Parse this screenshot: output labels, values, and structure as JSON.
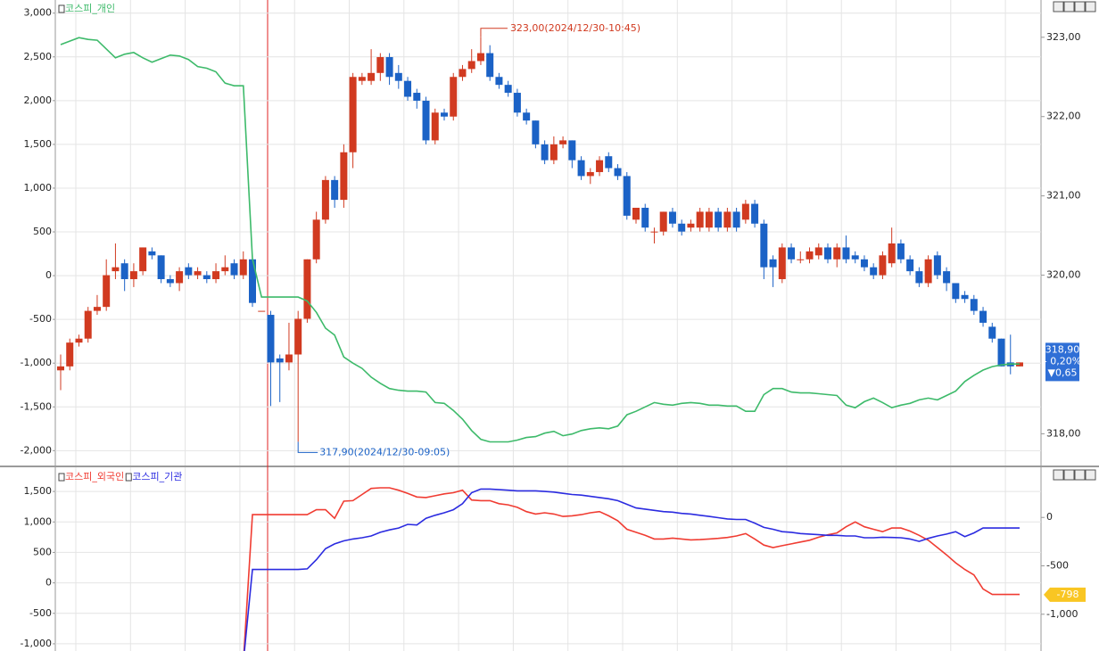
{
  "chart_data": [
    {
      "type": "candlestick",
      "candles": {
        "axis": "y2",
        "up_color": "#d13a20",
        "down_color": "#1b62c6",
        "open": [
          318.8,
          318.85,
          319.15,
          319.2,
          319.55,
          319.6,
          320.05,
          320.15,
          319.95,
          320.05,
          320.3,
          320.25,
          319.95,
          319.9,
          320.1,
          320.0,
          320.0,
          319.95,
          320.05,
          320.15,
          320.0,
          320.2,
          319.55,
          319.5,
          318.95,
          318.9,
          319.0,
          319.45,
          320.2,
          320.7,
          321.2,
          320.95,
          321.55,
          322.45,
          322.45,
          322.55,
          322.75,
          322.55,
          322.45,
          322.3,
          322.2,
          321.7,
          322.05,
          322.0,
          322.5,
          322.6,
          322.7,
          322.8,
          322.5,
          322.4,
          322.3,
          322.05,
          321.95,
          321.65,
          321.45,
          321.65,
          321.7,
          321.45,
          321.25,
          321.3,
          321.5,
          321.35,
          321.25,
          320.7,
          320.85,
          320.55,
          320.55,
          320.8,
          320.65,
          320.6,
          320.6,
          320.6,
          320.8,
          320.6,
          320.8,
          320.7,
          320.9,
          320.65,
          320.2,
          319.95,
          320.35,
          320.2,
          320.2,
          320.25,
          320.35,
          320.2,
          320.35,
          320.25,
          320.2,
          320.1,
          320.0,
          320.15,
          320.4,
          320.2,
          320.05,
          319.9,
          320.25,
          320.05,
          319.9,
          319.75,
          319.7,
          319.55,
          319.35,
          319.2,
          318.9,
          318.85
        ],
        "high": [
          319.0,
          319.2,
          319.25,
          319.6,
          319.75,
          320.2,
          320.4,
          320.2,
          320.15,
          320.35,
          320.35,
          320.25,
          320.0,
          320.1,
          320.15,
          320.1,
          320.05,
          320.15,
          320.25,
          320.2,
          320.3,
          320.2,
          319.55,
          319.55,
          319.0,
          319.4,
          319.55,
          320.2,
          320.8,
          321.25,
          321.25,
          321.65,
          322.55,
          322.55,
          322.85,
          322.8,
          322.8,
          322.65,
          322.5,
          322.35,
          322.25,
          322.1,
          322.1,
          322.55,
          322.65,
          322.85,
          323.0,
          322.9,
          322.55,
          322.45,
          322.35,
          322.1,
          321.95,
          321.7,
          321.75,
          321.75,
          321.7,
          321.5,
          321.35,
          321.5,
          321.55,
          321.4,
          321.3,
          320.85,
          320.9,
          320.6,
          320.8,
          320.85,
          320.7,
          320.7,
          320.85,
          320.85,
          320.85,
          320.85,
          320.85,
          320.95,
          320.95,
          320.7,
          320.25,
          320.4,
          320.4,
          320.3,
          320.35,
          320.4,
          320.4,
          320.4,
          320.5,
          320.3,
          320.25,
          320.15,
          320.3,
          320.6,
          320.45,
          320.25,
          320.1,
          320.25,
          320.3,
          320.1,
          319.9,
          319.8,
          319.75,
          319.6,
          319.4,
          319.2,
          319.25,
          318.9
        ],
        "low": [
          318.55,
          318.8,
          319.1,
          319.15,
          319.5,
          319.55,
          319.95,
          319.8,
          319.85,
          320.0,
          320.2,
          319.9,
          319.85,
          319.8,
          319.95,
          319.95,
          319.9,
          319.9,
          320.0,
          319.95,
          319.95,
          319.6,
          319.55,
          318.35,
          318.4,
          318.8,
          317.9,
          319.4,
          320.15,
          320.65,
          320.85,
          320.85,
          321.35,
          322.4,
          322.4,
          322.45,
          322.4,
          322.35,
          322.2,
          322.1,
          321.65,
          321.65,
          321.95,
          321.95,
          322.45,
          322.55,
          322.65,
          322.45,
          322.35,
          322.25,
          322.0,
          321.9,
          321.6,
          321.4,
          321.4,
          321.6,
          321.35,
          321.2,
          321.15,
          321.25,
          321.3,
          321.2,
          320.7,
          320.65,
          320.55,
          320.4,
          320.5,
          320.6,
          320.5,
          320.55,
          320.55,
          320.55,
          320.55,
          320.55,
          320.55,
          320.65,
          320.6,
          319.95,
          319.85,
          319.9,
          320.15,
          320.15,
          320.15,
          320.2,
          320.15,
          320.1,
          320.15,
          320.15,
          320.05,
          319.95,
          319.95,
          320.1,
          320.15,
          320.0,
          319.85,
          319.85,
          319.95,
          319.8,
          319.65,
          319.65,
          319.5,
          319.35,
          319.15,
          318.85,
          318.75,
          318.85
        ],
        "close": [
          318.85,
          319.15,
          319.2,
          319.55,
          319.6,
          320.0,
          320.1,
          319.95,
          320.05,
          320.35,
          320.25,
          319.95,
          319.9,
          320.05,
          320.0,
          320.05,
          319.95,
          320.05,
          320.1,
          320.0,
          320.2,
          319.65,
          319.55,
          318.9,
          318.9,
          319.0,
          319.45,
          320.2,
          320.7,
          321.2,
          320.95,
          321.55,
          322.5,
          322.5,
          322.55,
          322.75,
          322.5,
          322.45,
          322.25,
          322.2,
          321.7,
          322.05,
          322.0,
          322.5,
          322.6,
          322.7,
          322.8,
          322.5,
          322.4,
          322.3,
          322.05,
          321.95,
          321.65,
          321.45,
          321.65,
          321.7,
          321.45,
          321.25,
          321.3,
          321.45,
          321.35,
          321.25,
          320.75,
          320.85,
          320.6,
          320.55,
          320.8,
          320.65,
          320.55,
          320.65,
          320.8,
          320.8,
          320.6,
          320.8,
          320.6,
          320.9,
          320.65,
          320.1,
          320.1,
          320.35,
          320.2,
          320.2,
          320.3,
          320.35,
          320.2,
          320.35,
          320.2,
          320.2,
          320.1,
          320.0,
          320.25,
          320.4,
          320.2,
          320.05,
          319.9,
          320.2,
          320.0,
          319.9,
          319.7,
          319.7,
          319.55,
          319.4,
          319.2,
          318.85,
          318.85,
          318.9
        ]
      },
      "series": [
        {
          "name": "코스피_개인",
          "color": "#3dba6a",
          "values": [
            2640,
            2680,
            2720,
            2700,
            2690,
            2590,
            2490,
            2530,
            2550,
            2490,
            2440,
            2480,
            2520,
            2510,
            2470,
            2390,
            2370,
            2330,
            2200,
            2170,
            2170,
            190,
            -245,
            -245,
            -245,
            -245,
            -245,
            -290,
            -420,
            -600,
            -680,
            -930,
            -1000,
            -1060,
            -1160,
            -1230,
            -1290,
            -1310,
            -1320,
            -1320,
            -1330,
            -1450,
            -1460,
            -1540,
            -1640,
            -1770,
            -1870,
            -1900,
            -1900,
            -1900,
            -1880,
            -1850,
            -1840,
            -1800,
            -1780,
            -1830,
            -1810,
            -1770,
            -1750,
            -1740,
            -1750,
            -1720,
            -1590,
            -1550,
            -1500,
            -1450,
            -1470,
            -1480,
            -1460,
            -1450,
            -1460,
            -1480,
            -1480,
            -1490,
            -1490,
            -1550,
            -1550,
            -1360,
            -1290,
            -1290,
            -1330,
            -1340,
            -1340,
            -1350,
            -1360,
            -1370,
            -1480,
            -1510,
            -1440,
            -1400,
            -1450,
            -1510,
            -1480,
            -1460,
            -1420,
            -1400,
            -1420,
            -1370,
            -1320,
            -1210,
            -1140,
            -1080,
            -1040,
            -1020,
            -1010,
            -1010
          ]
        }
      ],
      "ylim": [
        -2170,
        3150
      ],
      "yticks": [
        {
          "value": 3000,
          "label": "3,000"
        },
        {
          "value": 2500,
          "label": "2,500"
        },
        {
          "value": 2000,
          "label": "2,000"
        },
        {
          "value": 1500,
          "label": "1,500"
        },
        {
          "value": 1000,
          "label": "1,000"
        },
        500,
        0,
        -500,
        {
          "value": -1000,
          "label": "-1,000"
        },
        {
          "value": -1500,
          "label": "-1,500"
        },
        {
          "value": -2000,
          "label": "-2,000"
        }
      ],
      "y2lim": [
        317.6,
        323.47
      ],
      "y2ticks": [
        {
          "value": 323,
          "label": "323,00"
        },
        {
          "value": 322,
          "label": "322,00"
        },
        {
          "value": 321,
          "label": "321,00"
        },
        {
          "value": 320,
          "label": "320,00"
        },
        {
          "value": 318,
          "label": "318,00"
        }
      ],
      "grid": true,
      "max_label": "323,00(2024/12/30-10:45)",
      "min_label": "317,90(2024/12/30-09:05)",
      "last_price": {
        "value": 318.9,
        "label": "318,90",
        "change_pct": "- 0,20%",
        "change": "▼0,65"
      }
    },
    {
      "type": "line",
      "series": [
        {
          "name": "코스피_외국인",
          "color": "#f03c32",
          "values": [
            null,
            null,
            null,
            null,
            null,
            null,
            null,
            null,
            null,
            null,
            null,
            null,
            null,
            null,
            null,
            null,
            null,
            null,
            null,
            null,
            -1300,
            1120,
            1120,
            1120,
            1120,
            1120,
            1120,
            1120,
            1200,
            1200,
            1060,
            1340,
            1350,
            1450,
            1550,
            1560,
            1560,
            1520,
            1470,
            1410,
            1400,
            1430,
            1460,
            1480,
            1520,
            1360,
            1350,
            1350,
            1300,
            1280,
            1240,
            1170,
            1130,
            1150,
            1130,
            1090,
            1100,
            1120,
            1150,
            1170,
            1100,
            1020,
            880,
            830,
            780,
            720,
            720,
            735,
            720,
            705,
            710,
            720,
            730,
            745,
            770,
            810,
            720,
            620,
            580,
            610,
            640,
            670,
            700,
            750,
            790,
            820,
            920,
            1000,
            920,
            880,
            840,
            900,
            900,
            850,
            780,
            700,
            580,
            460,
            330,
            220,
            130,
            -100,
            -190,
            -190,
            -190,
            -190
          ]
        },
        {
          "name": "코스피_기관",
          "color": "#2b2be0",
          "values": [
            null,
            null,
            null,
            null,
            null,
            null,
            null,
            null,
            null,
            null,
            null,
            null,
            null,
            null,
            null,
            null,
            null,
            null,
            null,
            null,
            -1300,
            220,
            220,
            220,
            220,
            220,
            220,
            230,
            380,
            560,
            640,
            690,
            720,
            740,
            770,
            830,
            870,
            900,
            960,
            950,
            1060,
            1110,
            1150,
            1200,
            1300,
            1480,
            1540,
            1540,
            1530,
            1520,
            1510,
            1510,
            1510,
            1500,
            1490,
            1470,
            1450,
            1440,
            1420,
            1400,
            1380,
            1350,
            1290,
            1230,
            1210,
            1190,
            1170,
            1160,
            1140,
            1130,
            1110,
            1090,
            1070,
            1050,
            1040,
            1040,
            980,
            910,
            880,
            840,
            830,
            810,
            800,
            790,
            780,
            780,
            770,
            770,
            740,
            740,
            750,
            745,
            740,
            720,
            680,
            730,
            770,
            800,
            840,
            760,
            820,
            900,
            900,
            900,
            900,
            900
          ]
        }
      ],
      "ylim": [
        -1118,
        1882
      ],
      "yticks": [
        {
          "value": 1500,
          "label": "1,500"
        },
        {
          "value": 1000,
          "label": "1,000"
        },
        500,
        0,
        -500,
        {
          "value": -1000,
          "label": "-1,000"
        }
      ],
      "y2lim": [
        -1380,
        509
      ],
      "y2ticks": [
        0,
        -500,
        {
          "value": -1000,
          "label": "-1,000"
        }
      ],
      "grid": true,
      "value_tag": {
        "value": -798,
        "label": "-798"
      }
    }
  ]
}
